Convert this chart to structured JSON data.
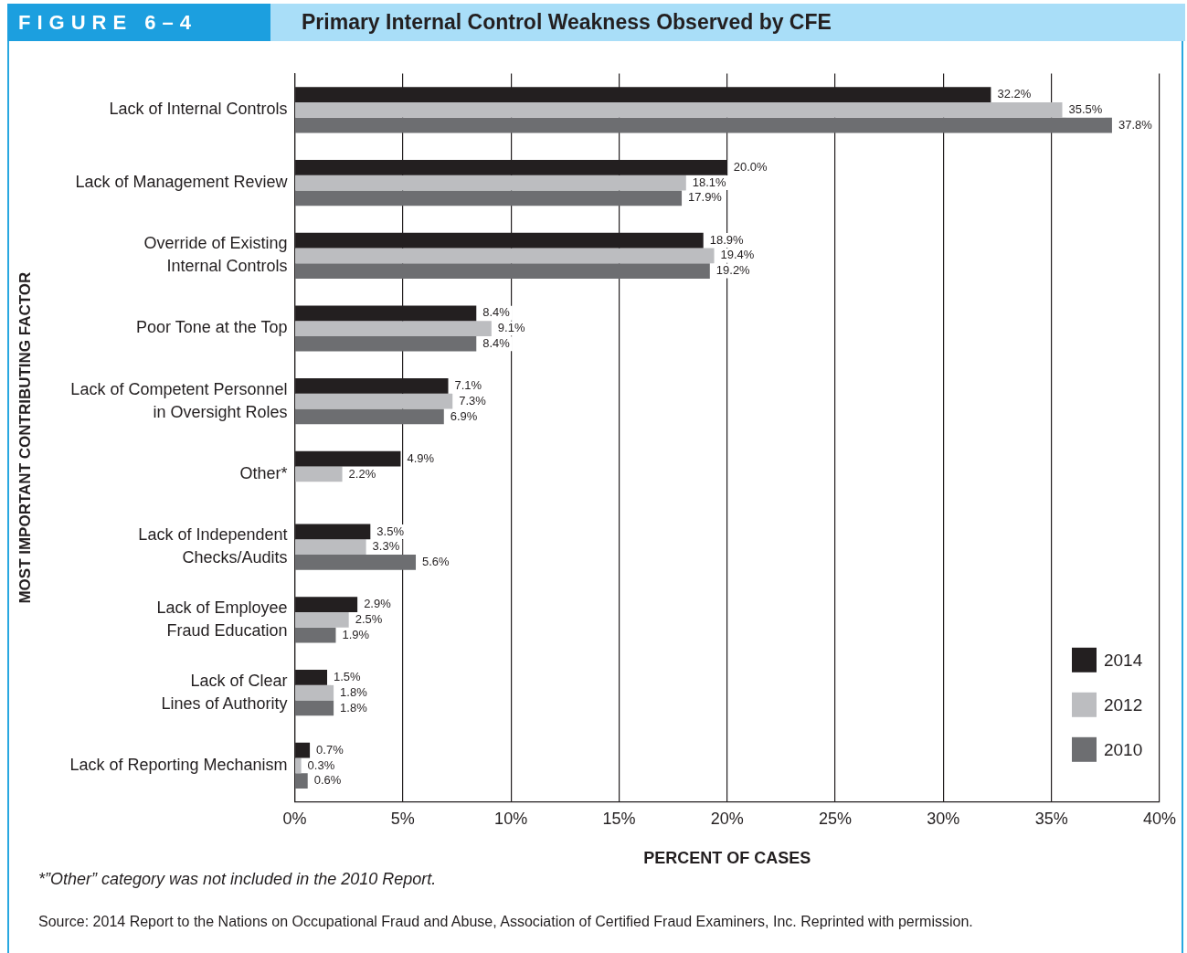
{
  "chart_data": {
    "type": "bar",
    "orientation": "horizontal",
    "subtitle": "FIGURE 6–4",
    "title": "Primary Internal Control Weakness Observed by CFE",
    "categories": [
      "Lack of Internal Controls",
      "Lack of Management Review",
      "Override of Existing\nInternal Controls",
      "Poor Tone at the Top",
      "Lack of Competent Personnel\nin Oversight Roles",
      "Other*",
      "Lack of Independent\nChecks/Audits",
      "Lack of Employee\nFraud Education",
      "Lack of Clear\nLines of Authority",
      "Lack of Reporting Mechanism"
    ],
    "series": [
      {
        "name": "2014",
        "color": "#231f20",
        "values": [
          32.2,
          20.0,
          18.9,
          8.4,
          7.1,
          4.9,
          3.5,
          2.9,
          1.5,
          0.7
        ],
        "value_labels": [
          "32.2%",
          "20.0%",
          "18.9%",
          "8.4%",
          "7.1%",
          "4.9%",
          "3.5%",
          "2.9%",
          "1.5%",
          "0.7%"
        ]
      },
      {
        "name": "2012",
        "color": "#bcbdc0",
        "values": [
          35.5,
          18.1,
          19.4,
          9.1,
          7.3,
          2.2,
          3.3,
          2.5,
          1.8,
          0.3
        ],
        "value_labels": [
          "35.5%",
          "18.1%",
          "19.4%",
          "9.1%",
          "7.3%",
          "2.2%",
          "3.3%",
          "2.5%",
          "1.8%",
          "0.3%"
        ]
      },
      {
        "name": "2010",
        "color": "#6d6e71",
        "values": [
          37.8,
          17.9,
          19.2,
          8.4,
          6.9,
          null,
          5.6,
          1.9,
          1.8,
          0.6
        ],
        "value_labels": [
          "37.8%",
          "17.9%",
          "19.2%",
          "8.4%",
          "6.9%",
          null,
          "5.6%",
          "1.9%",
          "1.8%",
          "0.6%"
        ]
      }
    ],
    "xlim": [
      0,
      40
    ],
    "xticks": [
      {
        "value": 0,
        "label": "0%"
      },
      {
        "value": 5,
        "label": "5%"
      },
      {
        "value": 10,
        "label": "10%"
      },
      {
        "value": 15,
        "label": "15%"
      },
      {
        "value": 20,
        "label": "20%"
      },
      {
        "value": 25,
        "label": "25%"
      },
      {
        "value": 30,
        "label": "30%"
      },
      {
        "value": 35,
        "label": "35%"
      },
      {
        "value": 40,
        "label": "40%"
      }
    ],
    "xlabel": "PERCENT OF CASES",
    "ylabel": "MOST IMPORTANT CONTRIBUTING FACTOR",
    "grid": "x",
    "legend": "bottom right",
    "annotations": [
      "*”Other” category was not included in the 2010 Report.",
      "Source: 2014 Report to the Nations on Occupational Fraud and Abuse, Association of Certified Fraud Examiners, Inc. Reprinted with permission."
    ]
  }
}
